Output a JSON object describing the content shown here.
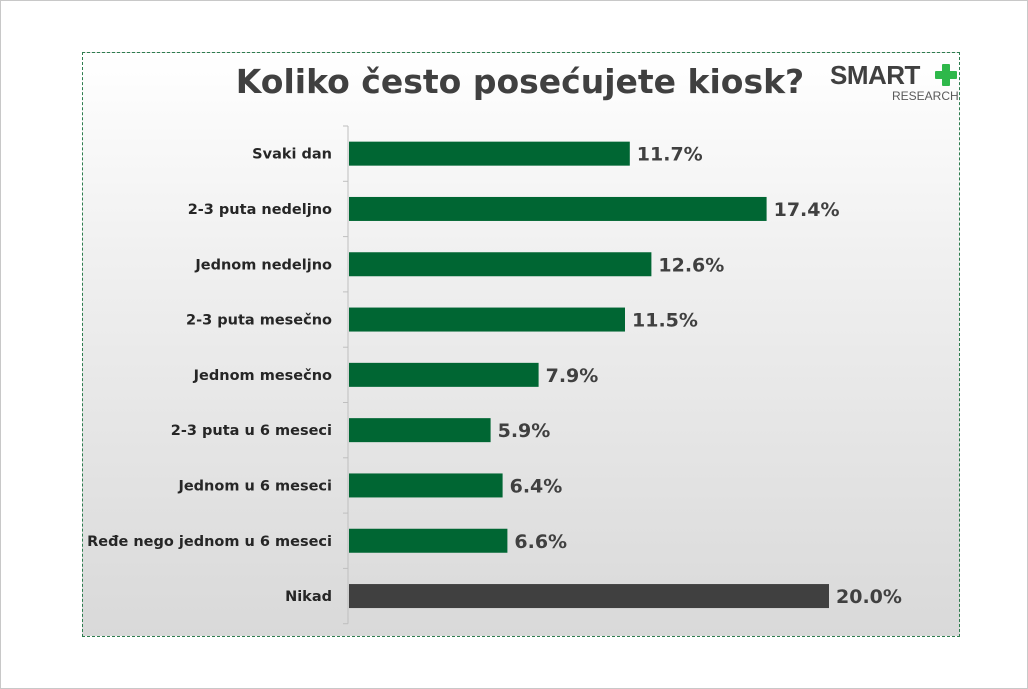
{
  "chart_data": {
    "type": "bar",
    "orientation": "horizontal",
    "title": "Koliko često posećujete kiosk?",
    "categories": [
      "Svaki dan",
      "2-3 puta nedeljno",
      "Jednom nedeljno",
      "2-3 puta mesečno",
      "Jednom mesečno",
      "2-3 puta u 6 meseci",
      "Jednom u 6 meseci",
      "Ređe nego jednom u 6 meseci",
      "Nikad"
    ],
    "values": [
      11.7,
      17.4,
      12.6,
      11.5,
      7.9,
      5.9,
      6.4,
      6.6,
      20.0
    ],
    "value_labels": [
      "11.7%",
      "17.4%",
      "12.6%",
      "11.5%",
      "7.9%",
      "5.9%",
      "6.4%",
      "6.6%",
      "20.0%"
    ],
    "bar_colors": [
      "#006633",
      "#006633",
      "#006633",
      "#006633",
      "#006633",
      "#006633",
      "#006633",
      "#006633",
      "#404040"
    ],
    "xlim": [
      0,
      20
    ],
    "xlabel": "",
    "ylabel": "",
    "grid": false,
    "legend": "none"
  },
  "logo": {
    "word": "SMART",
    "sub": "RESEARCH",
    "plus_color": "#2eb84a"
  }
}
